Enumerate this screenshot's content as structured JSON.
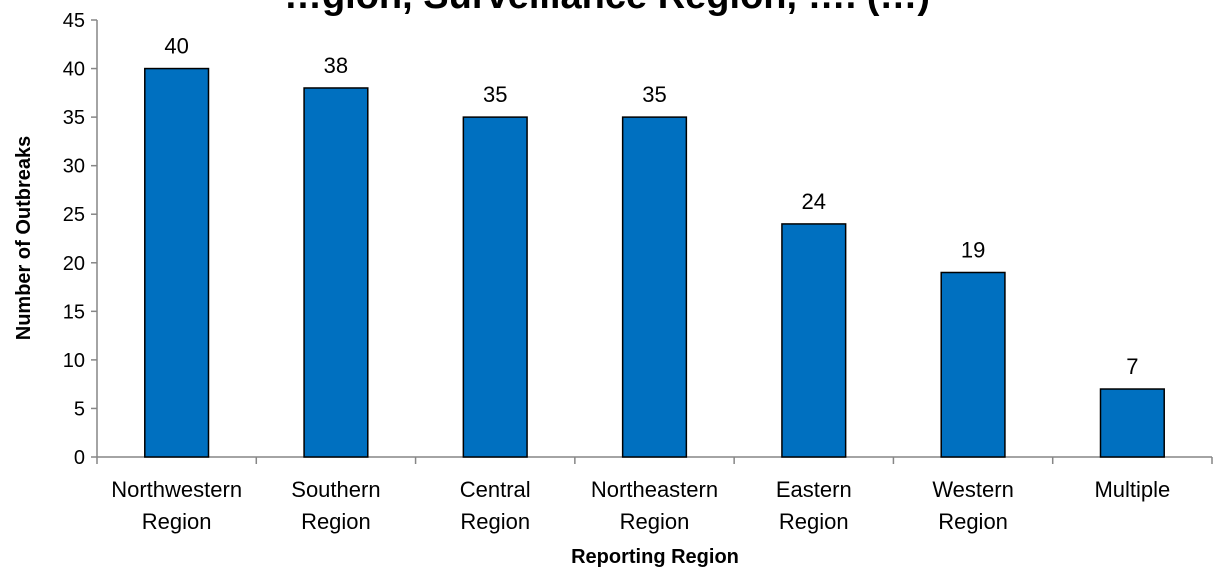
{
  "chart_data": {
    "type": "bar",
    "title": "…gion, Surveillance Region, …. (…)",
    "xlabel": "Reporting Region",
    "ylabel": "Number of Outbreaks",
    "ylim": [
      0,
      45
    ],
    "yticks": [
      "0",
      "5",
      "10",
      "15",
      "20",
      "25",
      "30",
      "35",
      "40",
      "45"
    ],
    "categories": [
      [
        "Northwestern",
        "Region"
      ],
      [
        "Southern",
        "Region"
      ],
      [
        "Central",
        "Region"
      ],
      [
        "Northeastern",
        "Region"
      ],
      [
        "Eastern",
        "Region"
      ],
      [
        "Western",
        "Region"
      ],
      [
        "Multiple"
      ]
    ],
    "values": [
      40,
      38,
      35,
      35,
      24,
      19,
      7
    ],
    "value_labels": [
      "40",
      "38",
      "35",
      "35",
      "24",
      "19",
      "7"
    ],
    "bar_color": "#0070C0",
    "bar_stroke": "#000000",
    "grid": false,
    "legend": "none"
  }
}
